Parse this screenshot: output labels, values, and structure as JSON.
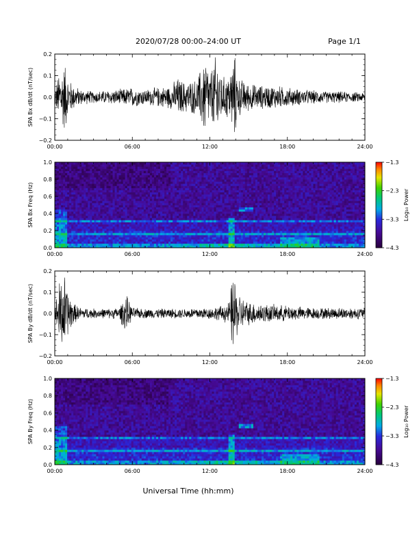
{
  "header": {
    "title": "2020/07/28  00:00–24:00 UT",
    "page": "Page 1/1"
  },
  "chart_data": [
    {
      "type": "line",
      "ylabel": "SPA Bx dB/dt (nT/sec)",
      "ylim": [
        -0.2,
        0.2
      ],
      "yticks": [
        "0.2",
        "0.1",
        "0.0",
        "−0.1",
        "−0.2"
      ],
      "yvals": [
        0.2,
        0.1,
        0.0,
        -0.1,
        -0.2
      ],
      "xticks": [
        "00:00",
        "06:00",
        "12:00",
        "18:00",
        "24:00"
      ],
      "xlim": [
        0,
        24
      ],
      "series": [
        {
          "x": [
            0,
            0.3,
            0.5,
            0.8,
            1.0,
            1.5,
            2,
            3,
            4,
            5,
            6,
            7,
            8,
            9,
            9.5,
            10,
            11,
            11.7,
            12,
            12.5,
            13,
            13.5,
            13.9,
            14.2,
            15,
            16,
            17,
            18,
            19,
            20,
            21,
            22,
            23,
            24
          ],
          "envelope": [
            0.04,
            0.12,
            0.15,
            0.18,
            0.1,
            0.06,
            0.04,
            0.03,
            0.035,
            0.04,
            0.05,
            0.04,
            0.05,
            0.06,
            0.1,
            0.08,
            0.09,
            0.22,
            0.12,
            0.22,
            0.1,
            0.12,
            0.22,
            0.1,
            0.07,
            0.06,
            0.06,
            0.05,
            0.04,
            0.035,
            0.03,
            0.03,
            0.025,
            0.025
          ]
        }
      ]
    },
    {
      "type": "heatmap",
      "ylabel": "SPA Bx Freq (Hz)",
      "ylim": [
        0.0,
        1.0
      ],
      "yticks": [
        "1.0",
        "0.8",
        "0.6",
        "0.4",
        "0.2",
        "0.0"
      ],
      "yvals": [
        1.0,
        0.8,
        0.6,
        0.4,
        0.2,
        0.0
      ],
      "xticks": [
        "00:00",
        "06:00",
        "12:00",
        "18:00",
        "24:00"
      ],
      "xlim": [
        0,
        24
      ],
      "colorbar": {
        "label": "Log₁₀ Power",
        "ticks": [
          "−1.3",
          "−2.3",
          "−3.3",
          "−4.3"
        ],
        "range": [
          -4.3,
          -1.3
        ]
      }
    },
    {
      "type": "line",
      "ylabel": "SPA By dB/dt (nT/sec)",
      "ylim": [
        -0.2,
        0.2
      ],
      "yticks": [
        "0.2",
        "0.1",
        "0.0",
        "−0.1",
        "−0.2"
      ],
      "yvals": [
        0.2,
        0.1,
        0.0,
        -0.1,
        -0.2
      ],
      "xticks": [
        "00:00",
        "06:00",
        "12:00",
        "18:00",
        "24:00"
      ],
      "xlim": [
        0,
        24
      ],
      "series": [
        {
          "x": [
            0,
            0.3,
            0.5,
            0.8,
            1.0,
            1.5,
            2,
            3,
            4,
            5,
            5.5,
            6,
            7,
            8,
            9,
            10,
            11,
            12,
            12.5,
            13,
            13.5,
            13.8,
            14.1,
            14.5,
            15,
            16,
            17,
            18,
            19,
            20,
            21,
            22,
            23,
            24
          ],
          "envelope": [
            0.03,
            0.15,
            0.2,
            0.2,
            0.12,
            0.05,
            0.03,
            0.025,
            0.025,
            0.03,
            0.1,
            0.03,
            0.025,
            0.025,
            0.025,
            0.025,
            0.03,
            0.03,
            0.035,
            0.04,
            0.06,
            0.22,
            0.12,
            0.08,
            0.06,
            0.05,
            0.045,
            0.04,
            0.035,
            0.03,
            0.03,
            0.03,
            0.03,
            0.03
          ]
        }
      ]
    },
    {
      "type": "heatmap",
      "ylabel": "SPA By Freq (Hz)",
      "ylim": [
        0.0,
        1.0
      ],
      "yticks": [
        "1.0",
        "0.8",
        "0.6",
        "0.4",
        "0.2",
        "0.0"
      ],
      "yvals": [
        1.0,
        0.8,
        0.6,
        0.4,
        0.2,
        0.0
      ],
      "xticks": [
        "00:00",
        "06:00",
        "12:00",
        "18:00",
        "24:00"
      ],
      "xlim": [
        0,
        24
      ],
      "colorbar": {
        "label": "Log₁₀ Power",
        "ticks": [
          "−1.3",
          "−2.3",
          "−3.3",
          "−4.3"
        ],
        "range": [
          -4.3,
          -1.3
        ]
      }
    }
  ],
  "footer": {
    "xlabel": "Universal Time (hh:mm)"
  }
}
